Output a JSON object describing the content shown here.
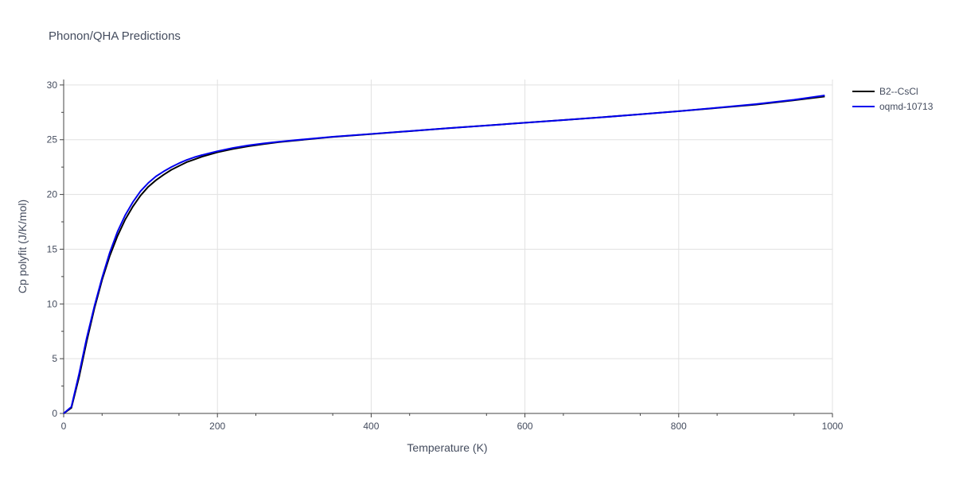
{
  "chart_data": {
    "type": "line",
    "title": "Phonon/QHA Predictions",
    "xlabel": "Temperature (K)",
    "ylabel": "Cp polyfit (J/K/mol)",
    "xlim": [
      0,
      1000
    ],
    "ylim": [
      0,
      30.5
    ],
    "xticks": [
      0,
      200,
      400,
      600,
      800,
      1000
    ],
    "yticks": [
      0,
      5,
      10,
      15,
      20,
      25,
      30
    ],
    "grid": true,
    "legend_position": "top-right",
    "series": [
      {
        "name": "B2--CsCl",
        "color": "#000000",
        "x": [
          0,
          10,
          20,
          30,
          40,
          50,
          60,
          70,
          80,
          90,
          100,
          110,
          120,
          130,
          140,
          150,
          160,
          170,
          180,
          190,
          200,
          220,
          240,
          260,
          280,
          300,
          350,
          400,
          450,
          500,
          550,
          600,
          650,
          700,
          750,
          800,
          850,
          900,
          950,
          990
        ],
        "y": [
          0,
          0.5,
          3.3,
          6.6,
          9.6,
          12.2,
          14.4,
          16.2,
          17.7,
          18.9,
          19.9,
          20.7,
          21.3,
          21.8,
          22.25,
          22.6,
          22.95,
          23.2,
          23.45,
          23.65,
          23.85,
          24.15,
          24.4,
          24.6,
          24.78,
          24.92,
          25.25,
          25.52,
          25.78,
          26.05,
          26.3,
          26.55,
          26.8,
          27.05,
          27.32,
          27.6,
          27.9,
          28.2,
          28.6,
          28.95
        ]
      },
      {
        "name": "oqmd-10713",
        "color": "#0000ee",
        "x": [
          0,
          10,
          20,
          30,
          40,
          50,
          60,
          70,
          80,
          90,
          100,
          110,
          120,
          130,
          140,
          150,
          160,
          170,
          180,
          190,
          200,
          220,
          240,
          260,
          280,
          300,
          350,
          400,
          450,
          500,
          550,
          600,
          650,
          700,
          750,
          800,
          850,
          900,
          950,
          990
        ],
        "y": [
          0,
          0.6,
          3.6,
          6.9,
          9.8,
          12.4,
          14.7,
          16.6,
          18.1,
          19.3,
          20.3,
          21.05,
          21.65,
          22.1,
          22.5,
          22.85,
          23.15,
          23.4,
          23.6,
          23.78,
          23.95,
          24.25,
          24.48,
          24.66,
          24.82,
          24.95,
          25.27,
          25.53,
          25.79,
          26.05,
          26.3,
          26.55,
          26.8,
          27.05,
          27.32,
          27.6,
          27.92,
          28.25,
          28.65,
          29.05
        ]
      }
    ]
  }
}
